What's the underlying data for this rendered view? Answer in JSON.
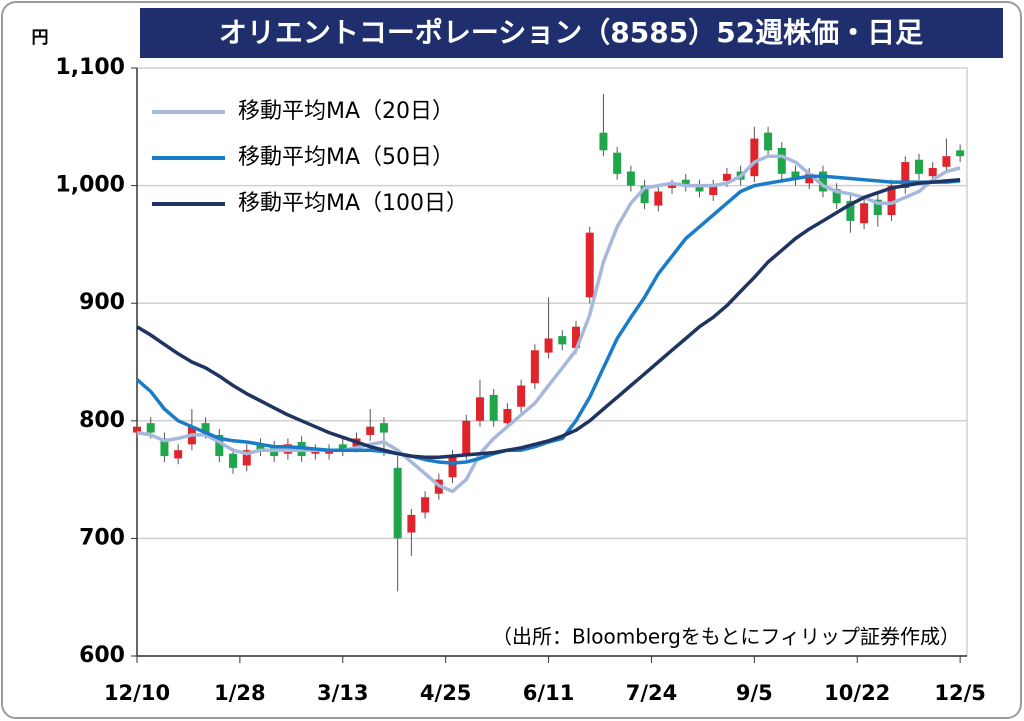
{
  "chart_data": {
    "type": "candlestick",
    "title": "オリエントコーポレーション（8585）52週株価・日足",
    "y_unit": "円",
    "note": "（出所：Bloombergをもとにフィリップ証券作成）",
    "up_color": "#e0242b",
    "down_color": "#1fa64a",
    "x": [
      0,
      4,
      8,
      12,
      16,
      20,
      24,
      28,
      32,
      36,
      40,
      44,
      48,
      52,
      56,
      60,
      64,
      68,
      72,
      76,
      80,
      84,
      88,
      92,
      96,
      100,
      104,
      108,
      112,
      116,
      120,
      124,
      128,
      132,
      136,
      140,
      144,
      148,
      152,
      156,
      160,
      164,
      168,
      172,
      176,
      180,
      184,
      188,
      192,
      196,
      200,
      204,
      208,
      212,
      216,
      220,
      224,
      228,
      232,
      236,
      240
    ],
    "open": [
      790,
      798,
      785,
      768,
      780,
      798,
      788,
      772,
      762,
      780,
      778,
      772,
      782,
      772,
      772,
      780,
      778,
      788,
      798,
      760,
      705,
      722,
      738,
      752,
      772,
      800,
      822,
      798,
      812,
      832,
      858,
      872,
      862,
      905,
      1045,
      1028,
      1012,
      1000,
      983,
      998,
      1005,
      1000,
      992,
      1004,
      1012,
      1008,
      1045,
      1032,
      1012,
      1002,
      1012,
      997,
      987,
      968,
      988,
      975,
      998,
      1022,
      1008,
      1016,
      1030
    ],
    "high": [
      800,
      803,
      790,
      780,
      810,
      803,
      793,
      777,
      780,
      785,
      783,
      785,
      787,
      780,
      780,
      785,
      790,
      810,
      803,
      770,
      725,
      740,
      755,
      775,
      805,
      835,
      827,
      815,
      835,
      865,
      905,
      877,
      885,
      965,
      1078,
      1033,
      1017,
      1005,
      1000,
      1005,
      1010,
      1005,
      1005,
      1015,
      1017,
      1050,
      1050,
      1037,
      1017,
      1015,
      1017,
      1002,
      992,
      990,
      993,
      1005,
      1025,
      1027,
      1020,
      1040,
      1035
    ],
    "low": [
      785,
      785,
      765,
      763,
      775,
      785,
      765,
      755,
      757,
      770,
      765,
      767,
      765,
      767,
      767,
      770,
      773,
      783,
      770,
      655,
      685,
      717,
      733,
      747,
      767,
      795,
      795,
      793,
      807,
      827,
      853,
      860,
      857,
      900,
      1025,
      1005,
      995,
      980,
      978,
      993,
      995,
      990,
      987,
      999,
      1000,
      1003,
      1025,
      1005,
      1000,
      997,
      990,
      980,
      960,
      963,
      965,
      970,
      993,
      1005,
      1003,
      1011,
      1020
    ],
    "close": [
      795,
      790,
      770,
      775,
      795,
      790,
      770,
      760,
      775,
      775,
      770,
      780,
      770,
      775,
      775,
      775,
      785,
      795,
      790,
      700,
      720,
      735,
      750,
      770,
      800,
      820,
      800,
      810,
      830,
      860,
      870,
      865,
      880,
      960,
      1030,
      1010,
      1000,
      985,
      995,
      1000,
      1000,
      995,
      1000,
      1010,
      1005,
      1040,
      1030,
      1010,
      1005,
      1010,
      995,
      985,
      970,
      985,
      975,
      1000,
      1020,
      1010,
      1015,
      1025,
      1025
    ],
    "series": [
      {
        "name": "移動平均MA（20日）",
        "color": "#a6b8dc",
        "values": [
          790,
          788,
          783,
          785,
          788,
          788,
          782,
          775,
          772,
          775,
          775,
          775,
          775,
          775,
          775,
          775,
          777,
          780,
          782,
          775,
          765,
          755,
          745,
          740,
          750,
          772,
          785,
          795,
          805,
          815,
          830,
          845,
          860,
          890,
          935,
          965,
          985,
          998,
          1000,
          1002,
          1000,
          1000,
          1000,
          1002,
          1008,
          1020,
          1025,
          1025,
          1020,
          1010,
          1000,
          995,
          993,
          990,
          985,
          985,
          990,
          995,
          1005,
          1012,
          1015
        ]
      },
      {
        "name": "移動平均MA（50日）",
        "color": "#1a7cc8",
        "values": [
          835,
          825,
          810,
          800,
          795,
          790,
          785,
          783,
          782,
          780,
          778,
          778,
          777,
          776,
          775,
          775,
          775,
          775,
          774,
          772,
          770,
          767,
          765,
          764,
          765,
          768,
          772,
          775,
          775,
          778,
          782,
          785,
          800,
          820,
          845,
          870,
          888,
          905,
          925,
          940,
          955,
          965,
          975,
          985,
          995,
          1000,
          1002,
          1004,
          1006,
          1008,
          1008,
          1007,
          1006,
          1005,
          1004,
          1003,
          1003,
          1003,
          1003,
          1003,
          1004
        ]
      },
      {
        "name": "移動平均MA（100日）",
        "color": "#1f3460",
        "values": [
          880,
          873,
          865,
          857,
          850,
          845,
          838,
          830,
          823,
          817,
          811,
          805,
          800,
          795,
          790,
          786,
          782,
          778,
          775,
          772,
          770,
          769,
          769,
          770,
          771,
          772,
          773,
          775,
          777,
          780,
          783,
          787,
          792,
          800,
          810,
          820,
          830,
          840,
          850,
          860,
          870,
          880,
          888,
          898,
          910,
          922,
          935,
          945,
          955,
          963,
          970,
          977,
          984,
          990,
          994,
          998,
          1000,
          1002,
          1003,
          1004,
          1005
        ]
      }
    ],
    "xlim": [
      0,
      242
    ],
    "xticks": [
      {
        "value": 0,
        "label": "12/10"
      },
      {
        "value": 30,
        "label": "1/28"
      },
      {
        "value": 60,
        "label": "3/13"
      },
      {
        "value": 90,
        "label": "4/25"
      },
      {
        "value": 120,
        "label": "6/11"
      },
      {
        "value": 150,
        "label": "7/24"
      },
      {
        "value": 180,
        "label": "9/5"
      },
      {
        "value": 210,
        "label": "10/22"
      },
      {
        "value": 240,
        "label": "12/5"
      }
    ],
    "ylim": [
      600,
      1100
    ],
    "yticks": [
      600,
      700,
      800,
      900,
      {
        "value": 1000,
        "label": "1,000"
      },
      {
        "value": 1100,
        "label": "1,100"
      }
    ],
    "grid": true
  }
}
